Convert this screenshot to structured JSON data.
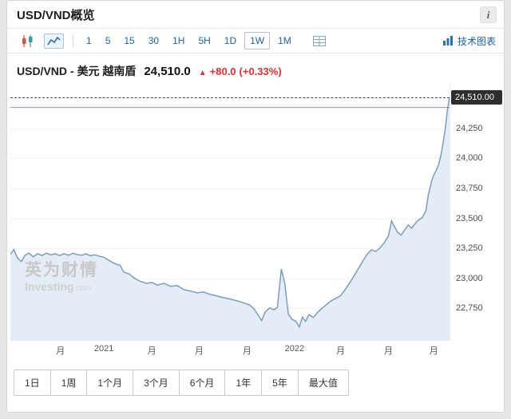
{
  "page": {
    "title": "USD/VND概览",
    "info_glyph": "i"
  },
  "toolbar": {
    "chart_types": [
      "candlestick",
      "area"
    ],
    "selected_chart_type": "area",
    "intervals": [
      "1",
      "5",
      "15",
      "30",
      "1H",
      "5H",
      "1D",
      "1W",
      "1M"
    ],
    "selected_interval": "1W",
    "technical_chart_label": "技术图表"
  },
  "quote": {
    "name": "USD/VND - 美元 越南盾",
    "price": "24,510.0",
    "arrow": "▲",
    "change": "+80.0",
    "change_percent": "(+0.33%)",
    "change_color": "#e03131"
  },
  "watermark": {
    "cn": "英为财情",
    "en": "Investing",
    "domain": ".com"
  },
  "chart_data": {
    "type": "area",
    "title": "USD/VND weekly price",
    "ylim": [
      22480,
      24620
    ],
    "grid": true,
    "line_color": "#7d9cc0",
    "fill_color": "#e4ecf6",
    "current_price": {
      "value": 24510,
      "label": "24,510.00",
      "tag_bg": "#2e2e2e"
    },
    "prev_close_line": 24430,
    "y_ticks": [
      {
        "value": 24250,
        "label": "24,250"
      },
      {
        "value": 24000,
        "label": "24,000"
      },
      {
        "value": 23750,
        "label": "23,750"
      },
      {
        "value": 23500,
        "label": "23,500"
      },
      {
        "value": 23250,
        "label": "23,250"
      },
      {
        "value": 23000,
        "label": "23,000"
      },
      {
        "value": 22750,
        "label": "22,750"
      }
    ],
    "x_ticks": [
      {
        "pos": 0.114,
        "label": "月"
      },
      {
        "pos": 0.213,
        "label": "2021"
      },
      {
        "pos": 0.322,
        "label": "月"
      },
      {
        "pos": 0.43,
        "label": "月"
      },
      {
        "pos": 0.539,
        "label": "月"
      },
      {
        "pos": 0.647,
        "label": "2022"
      },
      {
        "pos": 0.752,
        "label": "月"
      },
      {
        "pos": 0.861,
        "label": "月"
      },
      {
        "pos": 0.964,
        "label": "月"
      }
    ],
    "points": [
      [
        0.0,
        23200
      ],
      [
        0.008,
        23240
      ],
      [
        0.016,
        23170
      ],
      [
        0.025,
        23140
      ],
      [
        0.033,
        23190
      ],
      [
        0.042,
        23210
      ],
      [
        0.052,
        23180
      ],
      [
        0.062,
        23205
      ],
      [
        0.072,
        23190
      ],
      [
        0.082,
        23210
      ],
      [
        0.092,
        23195
      ],
      [
        0.102,
        23205
      ],
      [
        0.112,
        23190
      ],
      [
        0.122,
        23205
      ],
      [
        0.132,
        23192
      ],
      [
        0.142,
        23208
      ],
      [
        0.152,
        23198
      ],
      [
        0.162,
        23192
      ],
      [
        0.172,
        23204
      ],
      [
        0.182,
        23188
      ],
      [
        0.192,
        23196
      ],
      [
        0.202,
        23185
      ],
      [
        0.213,
        23175
      ],
      [
        0.225,
        23148
      ],
      [
        0.238,
        23122
      ],
      [
        0.25,
        23108
      ],
      [
        0.258,
        23052
      ],
      [
        0.27,
        23038
      ],
      [
        0.282,
        23002
      ],
      [
        0.295,
        22976
      ],
      [
        0.31,
        22958
      ],
      [
        0.322,
        22966
      ],
      [
        0.335,
        22944
      ],
      [
        0.35,
        22958
      ],
      [
        0.365,
        22934
      ],
      [
        0.38,
        22940
      ],
      [
        0.395,
        22906
      ],
      [
        0.41,
        22894
      ],
      [
        0.425,
        22880
      ],
      [
        0.44,
        22886
      ],
      [
        0.455,
        22866
      ],
      [
        0.47,
        22854
      ],
      [
        0.485,
        22840
      ],
      [
        0.5,
        22828
      ],
      [
        0.515,
        22814
      ],
      [
        0.53,
        22798
      ],
      [
        0.545,
        22778
      ],
      [
        0.555,
        22744
      ],
      [
        0.565,
        22690
      ],
      [
        0.572,
        22648
      ],
      [
        0.58,
        22718
      ],
      [
        0.59,
        22754
      ],
      [
        0.6,
        22738
      ],
      [
        0.608,
        22758
      ],
      [
        0.617,
        23078
      ],
      [
        0.625,
        22956
      ],
      [
        0.633,
        22702
      ],
      [
        0.641,
        22660
      ],
      [
        0.65,
        22642
      ],
      [
        0.658,
        22596
      ],
      [
        0.665,
        22678
      ],
      [
        0.672,
        22642
      ],
      [
        0.68,
        22698
      ],
      [
        0.69,
        22674
      ],
      [
        0.7,
        22718
      ],
      [
        0.71,
        22752
      ],
      [
        0.72,
        22782
      ],
      [
        0.73,
        22812
      ],
      [
        0.74,
        22832
      ],
      [
        0.752,
        22855
      ],
      [
        0.762,
        22905
      ],
      [
        0.772,
        22958
      ],
      [
        0.782,
        23018
      ],
      [
        0.792,
        23078
      ],
      [
        0.802,
        23140
      ],
      [
        0.812,
        23198
      ],
      [
        0.822,
        23238
      ],
      [
        0.832,
        23224
      ],
      [
        0.842,
        23254
      ],
      [
        0.852,
        23300
      ],
      [
        0.861,
        23356
      ],
      [
        0.868,
        23478
      ],
      [
        0.875,
        23428
      ],
      [
        0.882,
        23382
      ],
      [
        0.89,
        23360
      ],
      [
        0.898,
        23404
      ],
      [
        0.906,
        23444
      ],
      [
        0.914,
        23418
      ],
      [
        0.922,
        23458
      ],
      [
        0.93,
        23488
      ],
      [
        0.938,
        23506
      ],
      [
        0.946,
        23560
      ],
      [
        0.952,
        23700
      ],
      [
        0.956,
        23760
      ],
      [
        0.96,
        23820
      ],
      [
        0.964,
        23858
      ],
      [
        0.97,
        23902
      ],
      [
        0.975,
        23944
      ],
      [
        0.98,
        24020
      ],
      [
        0.985,
        24118
      ],
      [
        0.99,
        24238
      ],
      [
        0.995,
        24398
      ],
      [
        1.0,
        24510
      ]
    ]
  },
  "ranges": {
    "items": [
      "1日",
      "1周",
      "1个月",
      "3个月",
      "6个月",
      "1年",
      "5年",
      "最大值"
    ]
  }
}
